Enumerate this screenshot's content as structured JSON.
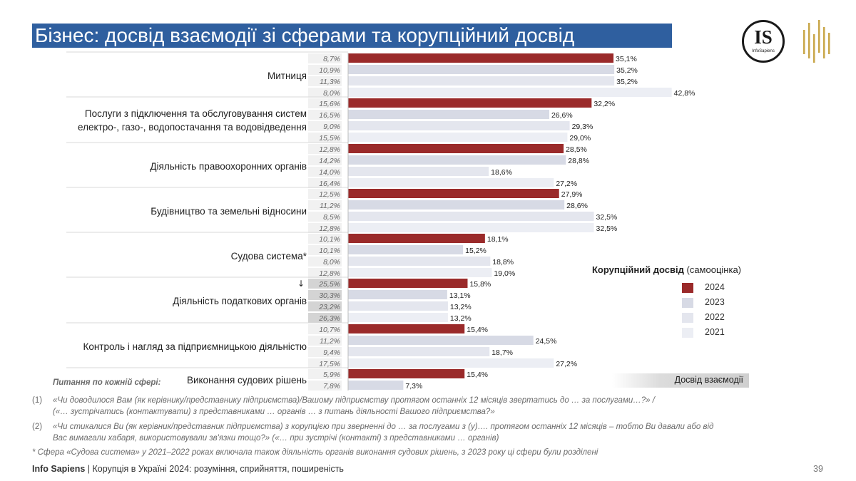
{
  "title": "Бізнес: досвід взаємодії зі сферами та корупційний досвід",
  "logo": {
    "text": "IS",
    "subtitle": "InfoSapiens"
  },
  "colors": {
    "y2024": "#9a2a2a",
    "y2023": "#d7dae5",
    "y2022": "#e4e6ee",
    "y2021": "#eceef4",
    "title_bg": "#2f5f9f"
  },
  "chart_data": {
    "type": "bar",
    "orientation": "horizontal",
    "xlim": [
      0,
      50
    ],
    "series_names": [
      "2024",
      "2023",
      "2022",
      "2021"
    ],
    "categories": [
      {
        "label": "Митниця",
        "interaction": [
          "8,7%",
          "10,9%",
          "11,3%",
          "8,0%"
        ],
        "values": [
          35.1,
          35.2,
          35.2,
          42.8
        ],
        "labels": [
          "35,1%",
          "35,2%",
          "35,2%",
          "42,8%"
        ]
      },
      {
        "label": "Послуги з підключення та обслуговування систем електро-, газо-, водопостачання та водовідведення",
        "interaction": [
          "15,6%",
          "16,5%",
          "9,0%",
          "15,5%"
        ],
        "values": [
          32.2,
          26.6,
          29.3,
          29.0
        ],
        "labels": [
          "32,2%",
          "26,6%",
          "29,3%",
          "29,0%"
        ]
      },
      {
        "label": "Діяльність правоохоронних органів",
        "interaction": [
          "12,8%",
          "14,2%",
          "14,0%",
          "16,4%"
        ],
        "values": [
          28.5,
          28.8,
          18.6,
          27.2
        ],
        "labels": [
          "28,5%",
          "28,8%",
          "18,6%",
          "27,2%"
        ]
      },
      {
        "label": "Будівництво та земельні відносини",
        "interaction": [
          "12,5%",
          "11,2%",
          "8,5%",
          "12,8%"
        ],
        "values": [
          27.9,
          28.6,
          32.5,
          32.5
        ],
        "labels": [
          "27,9%",
          "28,6%",
          "32,5%",
          "32,5%"
        ]
      },
      {
        "label": "Судова система*",
        "interaction": [
          "10,1%",
          "10,1%",
          "8,0%",
          "12,8%"
        ],
        "values": [
          18.1,
          15.2,
          18.8,
          19.0
        ],
        "labels": [
          "18,1%",
          "15,2%",
          "18,8%",
          "19,0%"
        ]
      },
      {
        "label": "Діяльність податкових органів",
        "interaction": [
          "25,5%",
          "30,3%",
          "23,2%",
          "26,3%"
        ],
        "values": [
          15.8,
          13.1,
          13.2,
          13.2
        ],
        "labels": [
          "15,8%",
          "13,1%",
          "13,2%",
          "13,2%"
        ],
        "shaded": true,
        "arrow": "↓"
      },
      {
        "label": "Контроль і нагляд за підприємницькою діяльністю",
        "interaction": [
          "10,7%",
          "11,2%",
          "9,4%",
          "17,5%"
        ],
        "values": [
          15.4,
          24.5,
          18.7,
          27.2
        ],
        "labels": [
          "15,4%",
          "24,5%",
          "18,7%",
          "27,2%"
        ]
      },
      {
        "label": "Виконання судових рішень",
        "interaction": [
          "5,9%",
          "7,8%"
        ],
        "values": [
          15.4,
          7.3
        ],
        "labels": [
          "15,4%",
          "7,3%"
        ]
      }
    ]
  },
  "legend": {
    "title_bold": "Корупційний досвід",
    "title_rest": " (самооцінка)",
    "items": [
      {
        "label": "2024",
        "color_key": "y2024"
      },
      {
        "label": "2023",
        "color_key": "y2023"
      },
      {
        "label": "2022",
        "color_key": "y2022"
      },
      {
        "label": "2021",
        "color_key": "y2021"
      }
    ]
  },
  "interaction_label": "Досвід взаємодії",
  "notes": {
    "heading": "Питання по кожній сфері:",
    "n1_num": "(1)",
    "n1_line1": "«Чи доводилося Вам (як керівнику/представнику підприємства)/Вашому підприємству протягом останніх 12 місяців звертатись до … за послугами…?» /",
    "n1_line2": "(«… зустрічатись (контактувати) з представниками … органів … з питань діяльності Вашого підприємства?»",
    "n2_num": "(2)",
    "n2_line1": "«Чи стикалися Ви (як керівник/представник підприємства) з корупцією при зверненні до … за послугами з (у)…. протягом останніх 12 місяців – тобто Ви давали або від",
    "n2_line2": "Вас вимагали хабаря, використовували зв'язки тощо?» («… при зустрічі (контакті) з представниками … органів)",
    "star": "* Сфера «Судова система» у 2021–2022 роках включала також діяльність органів виконання судових рішень, з 2023 року ці сфери були розділені"
  },
  "footer": {
    "brand": "Info Sapiens",
    "text": " | Корупція в Україні 2024: розуміння, сприйняття, поширеність",
    "page": "39"
  }
}
